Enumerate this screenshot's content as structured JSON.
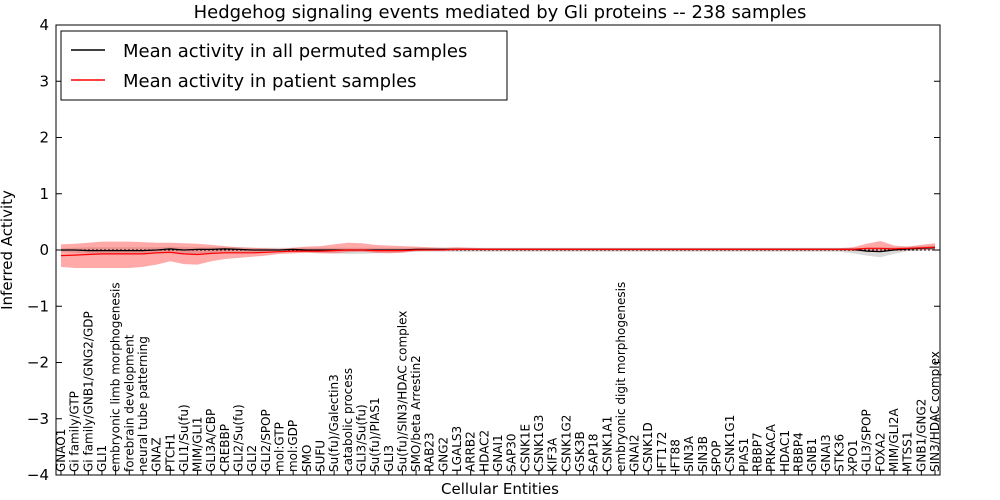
{
  "chart_data": {
    "type": "line",
    "title": "Hedgehog signaling events mediated by Gli proteins -- 238 samples",
    "xlabel": "Cellular Entities",
    "ylabel": "Inferred Activity",
    "ylim": [
      -4,
      4
    ],
    "yticks": [
      -4,
      -3,
      -2,
      -1,
      0,
      1,
      2,
      3,
      4
    ],
    "ytick_labels": [
      "−4",
      "−3",
      "−2",
      "−1",
      "0",
      "1",
      "2",
      "3",
      "4"
    ],
    "legend_position": "top-left",
    "categories": [
      "GNAO1",
      "Gi family/GTP",
      "Gi family/GNB1/GNG2/GDP",
      "GLI1",
      "embryonic limb morphogenesis",
      "forebrain development",
      "neural tube patterning",
      "GNAZ",
      "PTCH1",
      "GLI1/Su(fu)",
      "MIM/GLI1",
      "GLI3A/CBP",
      "CREBBP",
      "GLI2/Su(fu)",
      "GLI2",
      "GLI2/SPOP",
      "mol:GTP",
      "mol:GDP",
      "SMO",
      "SUFU",
      "Su(fu)/Galectin3",
      "catabolic process",
      "GLI3/Su(fu)",
      "Su(fu)/PIAS1",
      "GLI3",
      "Su(fu)/SIN3/HDAC complex",
      "SMO/beta Arrestin2",
      "RAB23",
      "GNG2",
      "LGALS3",
      "ARRB2",
      "HDAC2",
      "GNAI1",
      "SAP30",
      "CSNK1E",
      "CSNK1G3",
      "KIF3A",
      "CSNK1G2",
      "GSK3B",
      "SAP18",
      "CSNK1A1",
      "embryonic digit morphogenesis",
      "GNAI2",
      "CSNK1D",
      "IFT172",
      "IFT88",
      "SIN3A",
      "SIN3B",
      "SPOP",
      "CSNK1G1",
      "PIAS1",
      "RBBP7",
      "PRKACA",
      "HDAC1",
      "RBBP4",
      "GNB1",
      "GNAI3",
      "STK36",
      "XPO1",
      "GLI3/SPOP",
      "FOXA2",
      "MIM/GLI2A",
      "MTSS1",
      "GNB1/GNG2",
      "SIN3/HDAC complex"
    ],
    "series": [
      {
        "name": "Mean activity in all permuted samples",
        "color": "#000000",
        "values": [
          0.0,
          0.0,
          -0.01,
          -0.01,
          -0.01,
          -0.01,
          -0.01,
          0.0,
          0.02,
          0.0,
          0.01,
          0.01,
          0.02,
          0.01,
          0.0,
          0.0,
          0.0,
          0.01,
          0.0,
          0.0,
          0.0,
          0.0,
          0.0,
          0.0,
          0.0,
          0.0,
          0.01,
          0.01,
          0.01,
          0.01,
          0.01,
          0.01,
          0.01,
          0.01,
          0.01,
          0.01,
          0.01,
          0.01,
          0.01,
          0.01,
          0.01,
          0.01,
          0.01,
          0.01,
          0.01,
          0.01,
          0.01,
          0.01,
          0.01,
          0.01,
          0.01,
          0.01,
          0.01,
          0.01,
          0.01,
          0.01,
          0.01,
          0.01,
          0.01,
          -0.02,
          -0.03,
          0.0,
          0.02,
          0.03,
          0.04
        ],
        "band_lower": [
          -0.03,
          -0.05,
          -0.07,
          -0.08,
          -0.08,
          -0.08,
          -0.08,
          -0.07,
          -0.06,
          -0.08,
          -0.07,
          -0.06,
          -0.05,
          -0.05,
          -0.05,
          -0.04,
          -0.04,
          -0.04,
          -0.04,
          -0.05,
          -0.06,
          -0.07,
          -0.07,
          -0.06,
          -0.05,
          -0.04,
          -0.03,
          -0.03,
          -0.03,
          -0.03,
          -0.03,
          -0.03,
          -0.03,
          -0.03,
          -0.03,
          -0.03,
          -0.03,
          -0.03,
          -0.03,
          -0.03,
          -0.03,
          -0.03,
          -0.03,
          -0.03,
          -0.03,
          -0.03,
          -0.03,
          -0.03,
          -0.03,
          -0.03,
          -0.03,
          -0.03,
          -0.03,
          -0.03,
          -0.03,
          -0.03,
          -0.03,
          -0.03,
          -0.06,
          -0.1,
          -0.13,
          -0.07,
          -0.02,
          -0.01,
          0.0
        ],
        "band_upper": [
          0.03,
          0.04,
          0.05,
          0.05,
          0.05,
          0.05,
          0.05,
          0.05,
          0.06,
          0.05,
          0.05,
          0.05,
          0.05,
          0.05,
          0.04,
          0.04,
          0.04,
          0.04,
          0.04,
          0.04,
          0.04,
          0.04,
          0.04,
          0.04,
          0.04,
          0.04,
          0.04,
          0.04,
          0.04,
          0.04,
          0.04,
          0.04,
          0.04,
          0.04,
          0.04,
          0.04,
          0.04,
          0.04,
          0.04,
          0.04,
          0.04,
          0.04,
          0.04,
          0.04,
          0.04,
          0.04,
          0.04,
          0.04,
          0.04,
          0.04,
          0.04,
          0.04,
          0.04,
          0.04,
          0.04,
          0.04,
          0.04,
          0.04,
          0.04,
          0.04,
          0.04,
          0.05,
          0.06,
          0.07,
          0.08
        ]
      },
      {
        "name": "Mean activity in patient samples",
        "color": "#ff0000",
        "values": [
          -0.1,
          -0.09,
          -0.08,
          -0.07,
          -0.07,
          -0.07,
          -0.07,
          -0.05,
          -0.04,
          -0.07,
          -0.08,
          -0.06,
          -0.05,
          -0.05,
          -0.05,
          -0.04,
          -0.03,
          -0.02,
          -0.02,
          -0.02,
          -0.01,
          0.0,
          0.0,
          -0.01,
          -0.01,
          -0.01,
          0.0,
          0.0,
          0.0,
          0.01,
          0.01,
          0.01,
          0.01,
          0.01,
          0.01,
          0.01,
          0.01,
          0.01,
          0.01,
          0.01,
          0.01,
          0.01,
          0.01,
          0.01,
          0.01,
          0.01,
          0.01,
          0.01,
          0.01,
          0.01,
          0.01,
          0.01,
          0.01,
          0.01,
          0.01,
          0.01,
          0.01,
          0.01,
          0.01,
          0.03,
          0.03,
          0.02,
          0.03,
          0.04,
          0.05
        ],
        "band_lower": [
          -0.3,
          -0.32,
          -0.32,
          -0.32,
          -0.32,
          -0.32,
          -0.3,
          -0.26,
          -0.2,
          -0.25,
          -0.26,
          -0.2,
          -0.16,
          -0.14,
          -0.12,
          -0.1,
          -0.07,
          -0.06,
          -0.05,
          -0.06,
          -0.06,
          -0.04,
          -0.03,
          -0.05,
          -0.06,
          -0.05,
          -0.02,
          -0.01,
          -0.01,
          -0.01,
          -0.01,
          -0.01,
          -0.01,
          -0.01,
          -0.01,
          -0.01,
          -0.01,
          -0.01,
          -0.01,
          -0.01,
          -0.01,
          -0.01,
          -0.01,
          -0.01,
          -0.01,
          -0.01,
          -0.01,
          -0.01,
          -0.01,
          -0.01,
          -0.01,
          -0.01,
          -0.01,
          -0.01,
          -0.01,
          -0.01,
          -0.01,
          -0.01,
          -0.02,
          -0.02,
          -0.02,
          -0.01,
          -0.01,
          0.0,
          0.0
        ],
        "band_upper": [
          0.1,
          0.11,
          0.13,
          0.15,
          0.15,
          0.15,
          0.14,
          0.13,
          0.13,
          0.12,
          0.11,
          0.09,
          0.07,
          0.05,
          0.04,
          0.03,
          0.02,
          0.04,
          0.06,
          0.07,
          0.1,
          0.13,
          0.12,
          0.09,
          0.08,
          0.07,
          0.06,
          0.05,
          0.04,
          0.05,
          0.04,
          0.03,
          0.03,
          0.03,
          0.03,
          0.03,
          0.03,
          0.03,
          0.03,
          0.03,
          0.03,
          0.03,
          0.03,
          0.03,
          0.03,
          0.03,
          0.03,
          0.03,
          0.03,
          0.03,
          0.03,
          0.03,
          0.03,
          0.03,
          0.03,
          0.03,
          0.03,
          0.03,
          0.05,
          0.11,
          0.16,
          0.08,
          0.06,
          0.09,
          0.12
        ]
      }
    ]
  }
}
